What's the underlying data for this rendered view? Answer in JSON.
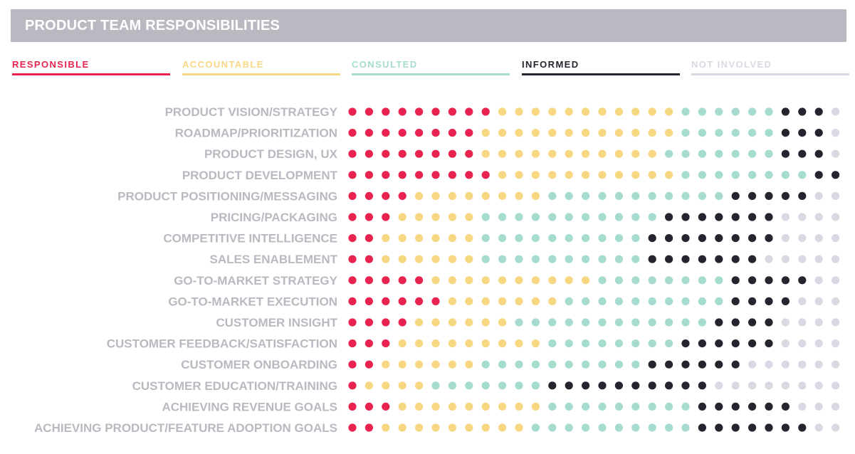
{
  "header": {
    "title": "PRODUCT TEAM RESPONSIBILITIES"
  },
  "legend": [
    {
      "label": "RESPONSIBLE",
      "color": "#e8234f"
    },
    {
      "label": "ACCOUNTABLE",
      "color": "#f7d782"
    },
    {
      "label": "CONSULTED",
      "color": "#a5dccf"
    },
    {
      "label": "INFORMED",
      "color": "#25252f"
    },
    {
      "label": "NOT INVOLVED",
      "color": "#d9d9e3"
    }
  ],
  "chart_data": {
    "type": "dot-matrix",
    "title": "PRODUCT TEAM RESPONSIBILITIES",
    "dots_per_row": 30,
    "series": [
      "RESPONSIBLE",
      "ACCOUNTABLE",
      "CONSULTED",
      "INFORMED",
      "NOT INVOLVED"
    ],
    "rows": [
      {
        "label": "PRODUCT VISION/STRATEGY",
        "counts": [
          9,
          11,
          6,
          3,
          1
        ]
      },
      {
        "label": "ROADMAP/PRIORITIZATION",
        "counts": [
          8,
          12,
          6,
          3,
          1
        ]
      },
      {
        "label": "PRODUCT DESIGN, UX",
        "counts": [
          8,
          11,
          7,
          3,
          1
        ]
      },
      {
        "label": "PRODUCT DEVELOPMENT",
        "counts": [
          9,
          11,
          8,
          2,
          0
        ]
      },
      {
        "label": "PRODUCT POSITIONING/MESSAGING",
        "counts": [
          4,
          8,
          11,
          5,
          2
        ]
      },
      {
        "label": "PRICING/PACKAGING",
        "counts": [
          3,
          5,
          11,
          7,
          4
        ]
      },
      {
        "label": "COMPETITIVE INTELLIGENCE",
        "counts": [
          2,
          6,
          10,
          8,
          4
        ]
      },
      {
        "label": "SALES ENABLEMENT",
        "counts": [
          2,
          6,
          10,
          7,
          5
        ]
      },
      {
        "label": "GO-TO-MARKET STRATEGY",
        "counts": [
          5,
          10,
          8,
          5,
          2
        ]
      },
      {
        "label": "GO-TO-MARKET EXECUTION",
        "counts": [
          6,
          7,
          10,
          4,
          3
        ]
      },
      {
        "label": "CUSTOMER INSIGHT",
        "counts": [
          4,
          6,
          12,
          4,
          4
        ]
      },
      {
        "label": "CUSTOMER FEEDBACK/SATISFACTION",
        "counts": [
          3,
          9,
          8,
          6,
          4
        ]
      },
      {
        "label": "CUSTOMER ONBOARDING",
        "counts": [
          2,
          6,
          10,
          6,
          6
        ]
      },
      {
        "label": "CUSTOMER EDUCATION/TRAINING",
        "counts": [
          1,
          4,
          7,
          10,
          8
        ]
      },
      {
        "label": "ACHIEVING REVENUE GOALS",
        "counts": [
          3,
          9,
          9,
          6,
          3
        ]
      },
      {
        "label": "ACHIEVING PRODUCT/FEATURE ADOPTION GOALS",
        "counts": [
          2,
          9,
          10,
          7,
          2
        ]
      }
    ]
  }
}
